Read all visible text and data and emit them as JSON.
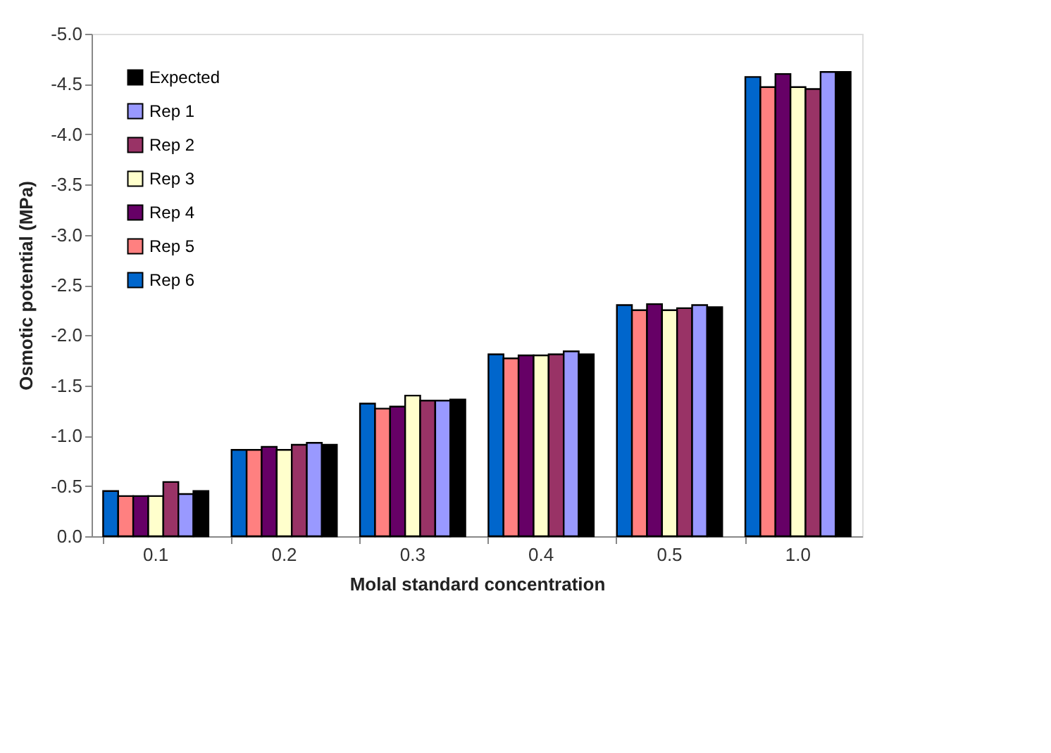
{
  "chart_data": {
    "type": "bar",
    "xlabel": "Molal standard concentration",
    "ylabel": "Osmotic potential (MPa)",
    "categories": [
      "0.1",
      "0.2",
      "0.3",
      "0.4",
      "0.5",
      "1.0"
    ],
    "series": [
      {
        "name": "Rep 6",
        "color": "#0066cc",
        "values": [
          -0.45,
          -0.86,
          -1.32,
          -1.81,
          -2.3,
          -4.57
        ]
      },
      {
        "name": "Rep 5",
        "color": "#ff8080",
        "values": [
          -0.4,
          -0.86,
          -1.27,
          -1.77,
          -2.25,
          -4.47
        ]
      },
      {
        "name": "Rep 4",
        "color": "#660066",
        "values": [
          -0.4,
          -0.89,
          -1.29,
          -1.8,
          -2.31,
          -4.6
        ]
      },
      {
        "name": "Rep 3",
        "color": "#ffffcc",
        "values": [
          -0.4,
          -0.86,
          -1.4,
          -1.8,
          -2.25,
          -4.47
        ]
      },
      {
        "name": "Rep 2",
        "color": "#993366",
        "values": [
          -0.54,
          -0.91,
          -1.35,
          -1.81,
          -2.27,
          -4.45
        ]
      },
      {
        "name": "Rep 1",
        "color": "#9999ff",
        "values": [
          -0.42,
          -0.93,
          -1.35,
          -1.84,
          -2.3,
          -4.62
        ]
      },
      {
        "name": "Expected",
        "color": "#000000",
        "values": [
          -0.45,
          -0.91,
          -1.36,
          -1.81,
          -2.28,
          -4.62
        ]
      }
    ],
    "ylim": [
      0,
      -5.0
    ],
    "yticks": [
      {
        "value": 0,
        "label": "0.0"
      },
      {
        "value": -0.5,
        "label": "-0.5"
      },
      {
        "value": -1.0,
        "label": "-1.0"
      },
      {
        "value": -1.5,
        "label": "-1.5"
      },
      {
        "value": -2.0,
        "label": "-2.0"
      },
      {
        "value": -2.5,
        "label": "-2.5"
      },
      {
        "value": -3.0,
        "label": "-3.0"
      },
      {
        "value": -3.5,
        "label": "-3.5"
      },
      {
        "value": -4.0,
        "label": "-4.0"
      },
      {
        "value": -4.5,
        "label": "-4.5"
      },
      {
        "value": -5.0,
        "label": "-5.0"
      }
    ],
    "grid": false,
    "legend": "top left"
  }
}
